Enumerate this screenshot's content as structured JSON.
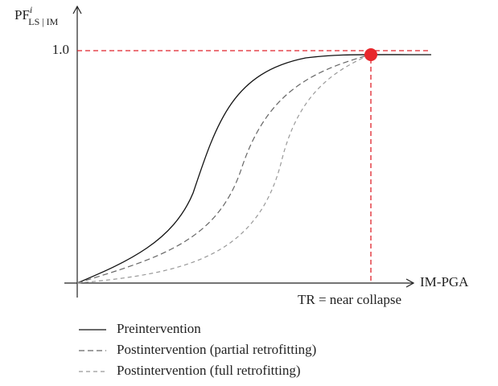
{
  "axes": {
    "y_label": {
      "base": "PF",
      "sup": "i",
      "sub": "LS | IM"
    },
    "y_tick": "1.0",
    "x_label": "IM-PGA",
    "threshold": "TR = near collapse"
  },
  "legend": [
    "Preintervention",
    "Postintervention (partial retrofitting)",
    "Postintervention (full retrofitting)"
  ]
}
